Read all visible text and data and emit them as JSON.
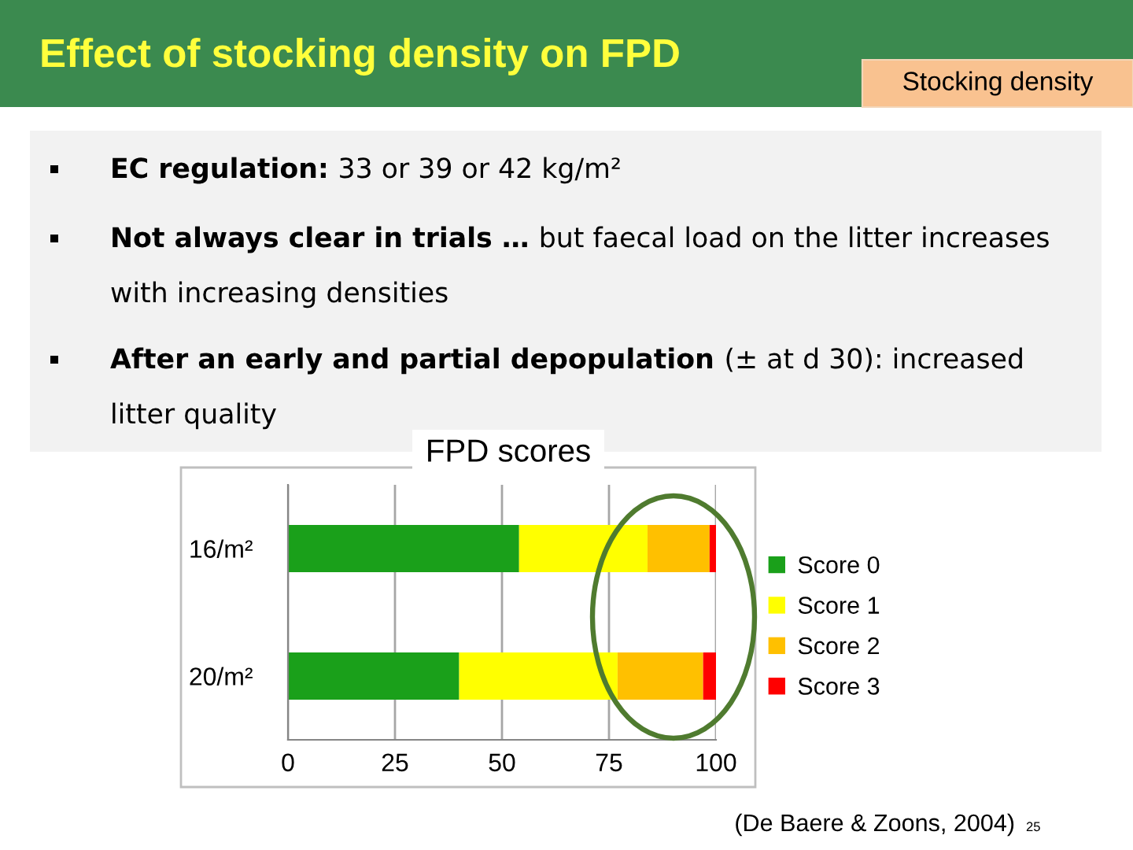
{
  "chart_data": {
    "type": "bar",
    "orientation": "horizontal",
    "stacked": true,
    "title": "Effect of stocking density on FPD",
    "subtitle": "FPD scores",
    "categories": [
      "16/m²",
      "20/m²"
    ],
    "series": [
      {
        "name": "Score 0",
        "color": "#1aa01a",
        "values": [
          54,
          40
        ]
      },
      {
        "name": "Score 1",
        "color": "#ffff00",
        "values": [
          30,
          37
        ]
      },
      {
        "name": "Score 2",
        "color": "#ffc000",
        "values": [
          14.5,
          20
        ]
      },
      {
        "name": "Score 3",
        "color": "#ff0000",
        "values": [
          1.5,
          3
        ]
      }
    ],
    "xlim": [
      0,
      100
    ],
    "xticks": [
      0,
      25,
      50,
      75,
      100
    ],
    "grid": "x",
    "legend": "right",
    "annotations": [
      "Stocking density",
      "EC regulation:",
      "33 or 39 or 42 kg/m²",
      "Not always clear in trials …",
      "but faecal load on the litter increases",
      "with increasing densities",
      "After an early and partial depopulation",
      "(± at d 30): increased",
      "litter quality",
      "(De Baere & Zoons, 2004)",
      "25"
    ]
  }
}
